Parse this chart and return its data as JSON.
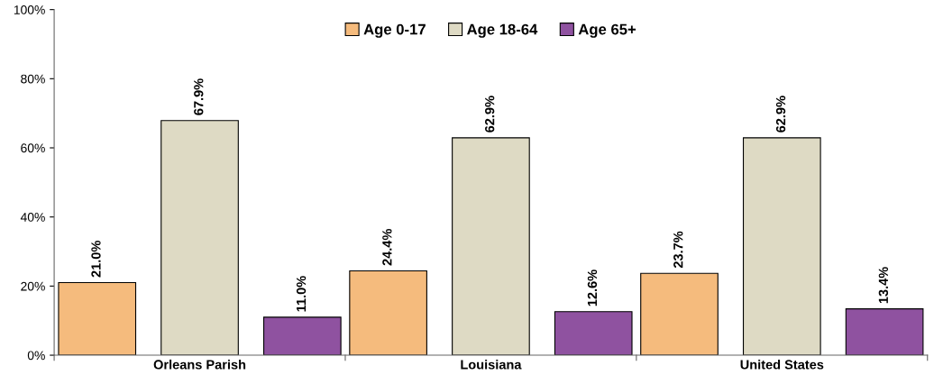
{
  "chart_data": {
    "type": "bar",
    "categories": [
      "Orleans Parish",
      "Louisiana",
      "United States"
    ],
    "series": [
      {
        "name": "Age 0-17",
        "color": "#f5bb7d",
        "values": [
          21.0,
          24.4,
          23.7
        ],
        "value_labels": [
          "21.0%",
          "24.4%",
          "23.7%"
        ]
      },
      {
        "name": "Age 18-64",
        "color": "#dedac4",
        "values": [
          67.9,
          62.9,
          62.9
        ],
        "value_labels": [
          "67.9%",
          "62.9%",
          "62.9%"
        ]
      },
      {
        "name": "Age 65+",
        "color": "#8f52a0",
        "values": [
          11.0,
          12.6,
          13.4
        ],
        "value_labels": [
          "11.0%",
          "12.6%",
          "13.4%"
        ]
      }
    ],
    "ylim": [
      0,
      100
    ],
    "yticks": [
      {
        "value": 0,
        "label": "0%"
      },
      {
        "value": 20,
        "label": "20%"
      },
      {
        "value": 40,
        "label": "40%"
      },
      {
        "value": 60,
        "label": "60%"
      },
      {
        "value": 80,
        "label": "80%"
      },
      {
        "value": 100,
        "label": "100%"
      }
    ],
    "grid": false,
    "legend": "top"
  }
}
